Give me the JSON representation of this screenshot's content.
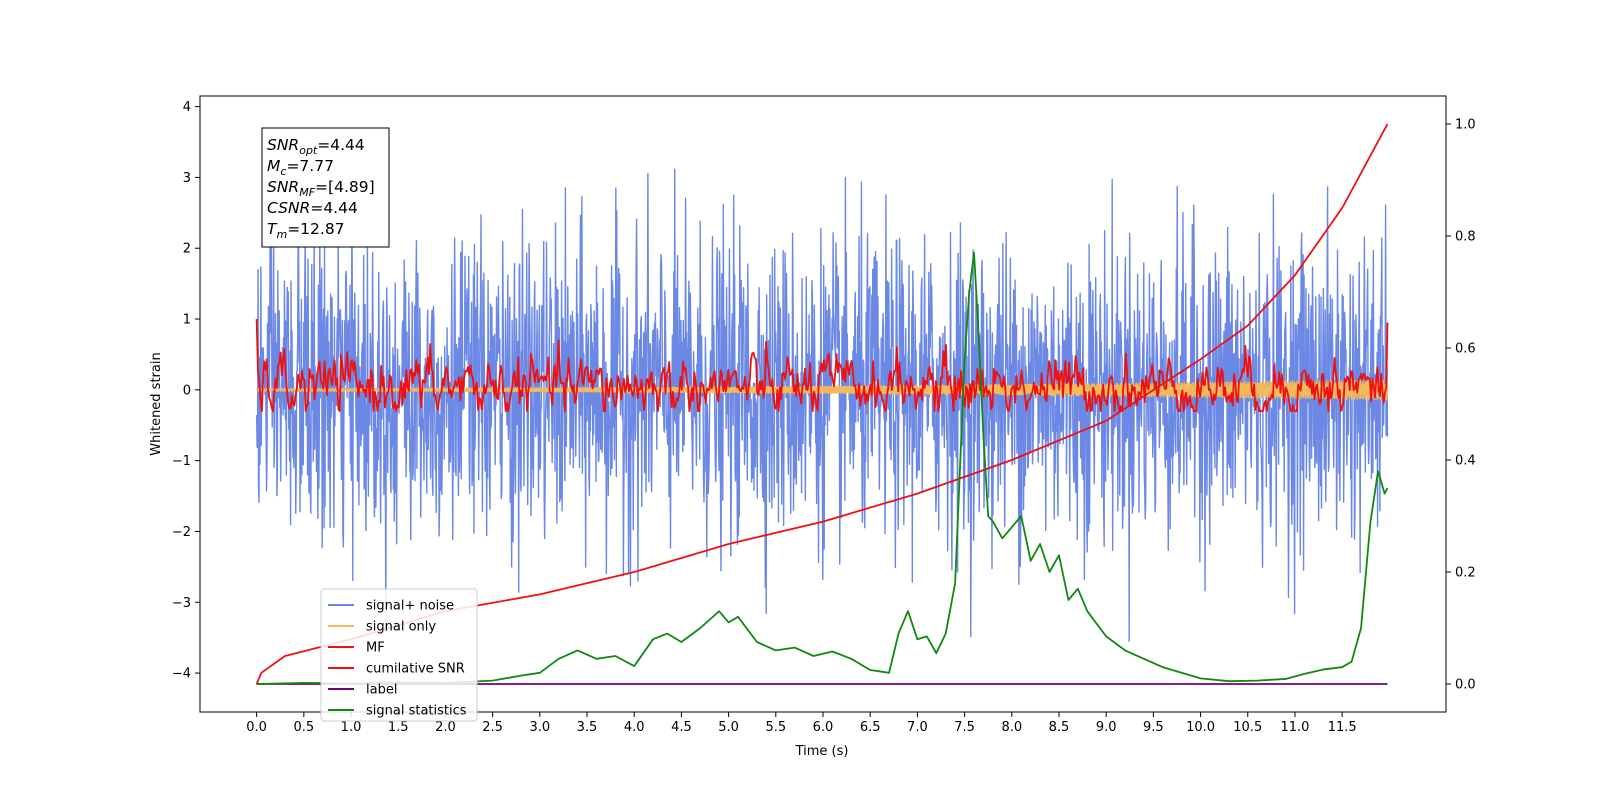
{
  "chart_data": {
    "type": "line",
    "xlabel": "Time (s)",
    "ylabel": "Whitened strain",
    "xlim": [
      -0.6,
      12.6
    ],
    "ylim": [
      -4.55,
      4.15
    ],
    "y2lim": [
      -0.05,
      1.05
    ],
    "x_ticks": [
      0.0,
      0.5,
      1.0,
      1.5,
      2.0,
      2.5,
      3.0,
      3.5,
      4.0,
      4.5,
      5.0,
      5.5,
      6.0,
      6.5,
      7.0,
      7.5,
      8.0,
      8.5,
      9.0,
      9.5,
      10.0,
      10.5,
      11.0,
      11.5
    ],
    "x_tick_labels": [
      "0.0",
      "0.5",
      "1.0",
      "1.5",
      "2.0",
      "2.5",
      "3.0",
      "3.5",
      "4.0",
      "4.5",
      "5.0",
      "5.5",
      "6.0",
      "6.5",
      "7.0",
      "7.5",
      "8.0",
      "8.5",
      "9.0",
      "9.5",
      "10.0",
      "10.5",
      "11.0",
      "11.5"
    ],
    "y_ticks": [
      -4,
      -3,
      -2,
      -1,
      0,
      1,
      2,
      3,
      4
    ],
    "y_tick_labels": [
      "−4",
      "−3",
      "−2",
      "−1",
      "0",
      "1",
      "2",
      "3",
      "4"
    ],
    "y2_ticks": [
      0.0,
      0.2,
      0.4,
      0.6,
      0.8,
      1.0
    ],
    "y2_tick_labels": [
      "0.0",
      "0.2",
      "0.4",
      "0.6",
      "0.8",
      "1.0"
    ],
    "grid": false,
    "legend_position": "lower-left",
    "colors": {
      "signal_noise": "#6b88e4",
      "signal_only": "#f4b95a",
      "mf": "#ee1111",
      "cumulative_snr": "#ee1111",
      "label": "#750075",
      "signal_statistics": "#118811"
    },
    "annotation": [
      {
        "sym": "SNR",
        "sub": "opt",
        "value": "=4.44"
      },
      {
        "sym": "M",
        "sub": "c",
        "value": "=7.77"
      },
      {
        "sym": "SNR",
        "sub": "MF",
        "value": "=[4.89]"
      },
      {
        "sym": "CSNR",
        "sub": "",
        "value": "=4.44"
      },
      {
        "sym": "T",
        "sub": "m",
        "value": "=12.87"
      }
    ],
    "series": [
      {
        "name": "signal+ noise",
        "axis": "left",
        "style": "noise",
        "x_range": [
          0.0,
          11.98
        ],
        "band": [
          -1.2,
          1.2
        ],
        "peak": 3.8,
        "trough": -4.15,
        "note_values": "random-looking noise between about -3.5 and 3.8"
      },
      {
        "name": "signal only",
        "axis": "left",
        "style": "chirp",
        "x_range": [
          0.0,
          11.98
        ],
        "amplitude_start": 0.02,
        "amplitude_end": 0.14
      },
      {
        "name": "MF",
        "axis": "left",
        "style": "wiggle",
        "x_range": [
          0.0,
          11.98
        ],
        "start": 1.0,
        "end": 0.95,
        "band": [
          -0.3,
          0.55
        ]
      },
      {
        "name": "cumilative SNR",
        "axis": "right",
        "x": [
          0.0,
          0.05,
          0.3,
          1.0,
          2.0,
          3.0,
          4.0,
          5.0,
          6.0,
          7.0,
          8.0,
          9.0,
          10.0,
          10.5,
          11.0,
          11.5,
          11.98
        ],
        "y": [
          0.0,
          0.02,
          0.05,
          0.08,
          0.13,
          0.16,
          0.2,
          0.25,
          0.29,
          0.34,
          0.4,
          0.47,
          0.58,
          0.64,
          0.73,
          0.85,
          1.0
        ]
      },
      {
        "name": "label",
        "axis": "right",
        "x": [
          0.0,
          11.98
        ],
        "y": [
          0.0,
          0.0
        ]
      },
      {
        "name": "signal statistics",
        "axis": "right",
        "x": [
          0.0,
          0.5,
          1.0,
          1.5,
          2.0,
          2.5,
          2.8,
          3.0,
          3.2,
          3.4,
          3.6,
          3.8,
          4.0,
          4.2,
          4.35,
          4.5,
          4.7,
          4.9,
          5.0,
          5.1,
          5.3,
          5.5,
          5.7,
          5.9,
          6.1,
          6.3,
          6.5,
          6.7,
          6.8,
          6.9,
          7.0,
          7.1,
          7.2,
          7.3,
          7.4,
          7.5,
          7.55,
          7.6,
          7.65,
          7.7,
          7.75,
          7.8,
          7.9,
          8.0,
          8.1,
          8.2,
          8.3,
          8.4,
          8.5,
          8.6,
          8.7,
          8.8,
          9.0,
          9.2,
          9.4,
          9.6,
          9.8,
          10.0,
          10.3,
          10.6,
          10.9,
          11.1,
          11.3,
          11.5,
          11.6,
          11.7,
          11.8,
          11.88,
          11.95,
          11.98
        ],
        "y": [
          0.0,
          0.002,
          0.001,
          0.003,
          0.002,
          0.006,
          0.015,
          0.02,
          0.045,
          0.06,
          0.045,
          0.05,
          0.032,
          0.08,
          0.09,
          0.075,
          0.1,
          0.13,
          0.11,
          0.12,
          0.075,
          0.06,
          0.065,
          0.05,
          0.058,
          0.045,
          0.025,
          0.02,
          0.09,
          0.13,
          0.08,
          0.085,
          0.055,
          0.09,
          0.18,
          0.58,
          0.7,
          0.77,
          0.62,
          0.44,
          0.3,
          0.29,
          0.26,
          0.28,
          0.3,
          0.22,
          0.25,
          0.2,
          0.23,
          0.15,
          0.17,
          0.13,
          0.085,
          0.06,
          0.045,
          0.03,
          0.02,
          0.01,
          0.005,
          0.006,
          0.009,
          0.018,
          0.026,
          0.03,
          0.04,
          0.1,
          0.29,
          0.38,
          0.34,
          0.35
        ]
      }
    ]
  }
}
